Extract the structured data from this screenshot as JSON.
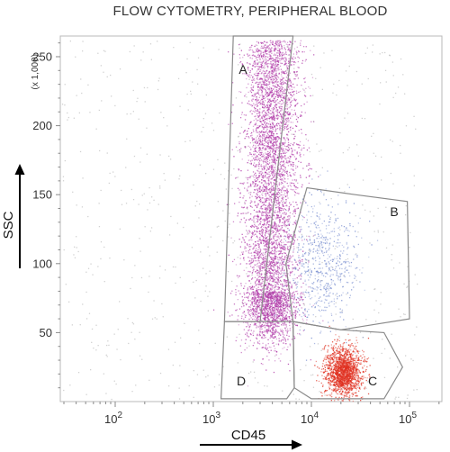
{
  "chart_data": {
    "type": "scatter",
    "title": "FLOW CYTOMETRY, PERIPHERAL BLOOD",
    "xlabel": "CD45",
    "ylabel": "SSC",
    "x_scale": "log",
    "xlim": [
      10,
      150000
    ],
    "ylim": [
      0,
      265
    ],
    "y_multiplier_label": "(x 1,000)",
    "x_ticks": [
      {
        "base": "10",
        "exp": "2",
        "value": 100
      },
      {
        "base": "10",
        "exp": "3",
        "value": 1000
      },
      {
        "base": "10",
        "exp": "4",
        "value": 10000
      },
      {
        "base": "10",
        "exp": "5",
        "value": 100000
      }
    ],
    "y_ticks": [
      "50",
      "100",
      "150",
      "200",
      "250"
    ],
    "grid": false,
    "gates": [
      {
        "label": "A",
        "vertices": [
          [
            1600,
            265
          ],
          [
            6500,
            265
          ],
          [
            3000,
            58
          ],
          [
            1300,
            58
          ]
        ]
      },
      {
        "label": "B",
        "vertices": [
          [
            5500,
            100
          ],
          [
            9000,
            155
          ],
          [
            28000,
            150
          ],
          [
            95000,
            145
          ],
          [
            100000,
            60
          ],
          [
            20000,
            52
          ],
          [
            6500,
            58
          ]
        ]
      },
      {
        "label": "C",
        "vertices": [
          [
            6500,
            58
          ],
          [
            20000,
            52
          ],
          [
            55000,
            50
          ],
          [
            85000,
            25
          ],
          [
            55000,
            2
          ],
          [
            10000,
            2
          ],
          [
            6700,
            10
          ]
        ]
      },
      {
        "label": "D",
        "vertices": [
          [
            1300,
            58
          ],
          [
            6500,
            58
          ],
          [
            6700,
            10
          ],
          [
            5600,
            2
          ],
          [
            1200,
            2
          ]
        ]
      }
    ],
    "populations": [
      {
        "name": "",
        "color": "#b03aa8",
        "count": 5500,
        "x_center": 3700,
        "y_top": 262,
        "y_bottom": 80,
        "spread_log": 0.14
      },
      {
        "name": "",
        "color": "#7a8fd0",
        "count": 650,
        "x_center": 13000,
        "y_center": 100,
        "spread_log": 0.18,
        "y_spread": 22
      },
      {
        "name": "",
        "color": "#e03020",
        "count": 1800,
        "x_center": 21000,
        "y_center": 22,
        "spread_log": 0.09,
        "y_spread": 9
      },
      {
        "name": "",
        "color": "#9a9a9a",
        "count": 650,
        "x_range": [
          15,
          120000
        ],
        "y_range": [
          2,
          262
        ]
      }
    ]
  }
}
